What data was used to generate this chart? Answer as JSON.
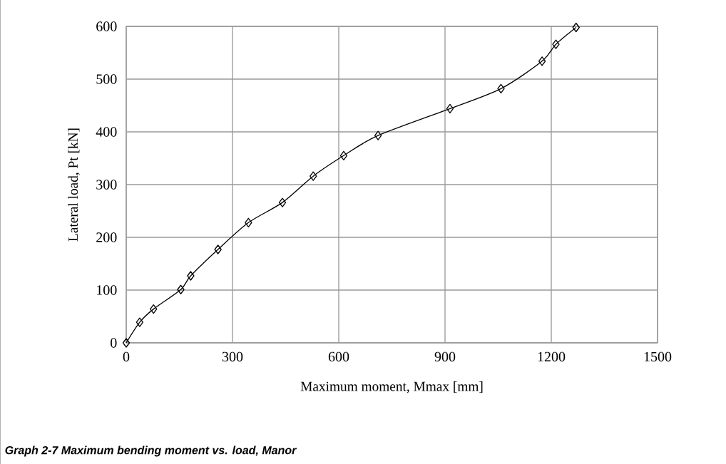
{
  "chart_data": {
    "type": "line",
    "xlabel": "Maximum moment, Mmax [mm]",
    "ylabel": "Lateral load, Pt [kN]",
    "annotations": [
      "Graph 2-7 Maximum bending moment vs. load, Manor"
    ],
    "x": [
      0,
      38,
      77,
      154,
      182,
      259,
      345,
      441,
      528,
      614,
      711,
      914,
      1058,
      1174,
      1213,
      1270
    ],
    "series": [
      {
        "color": "#000000",
        "values": [
          0,
          39,
          64,
          101,
          127,
          177,
          228,
          266,
          316,
          355,
          393,
          444,
          482,
          534,
          566,
          598
        ]
      }
    ],
    "xlim": [
      0,
      1500
    ],
    "xticks": [
      0,
      300,
      600,
      900,
      1200,
      1500
    ],
    "ylim": [
      0,
      600
    ],
    "yticks": [
      0,
      100,
      200,
      300,
      400,
      500,
      600
    ],
    "grid": true,
    "marker": "diamond",
    "line_style": "solid"
  }
}
